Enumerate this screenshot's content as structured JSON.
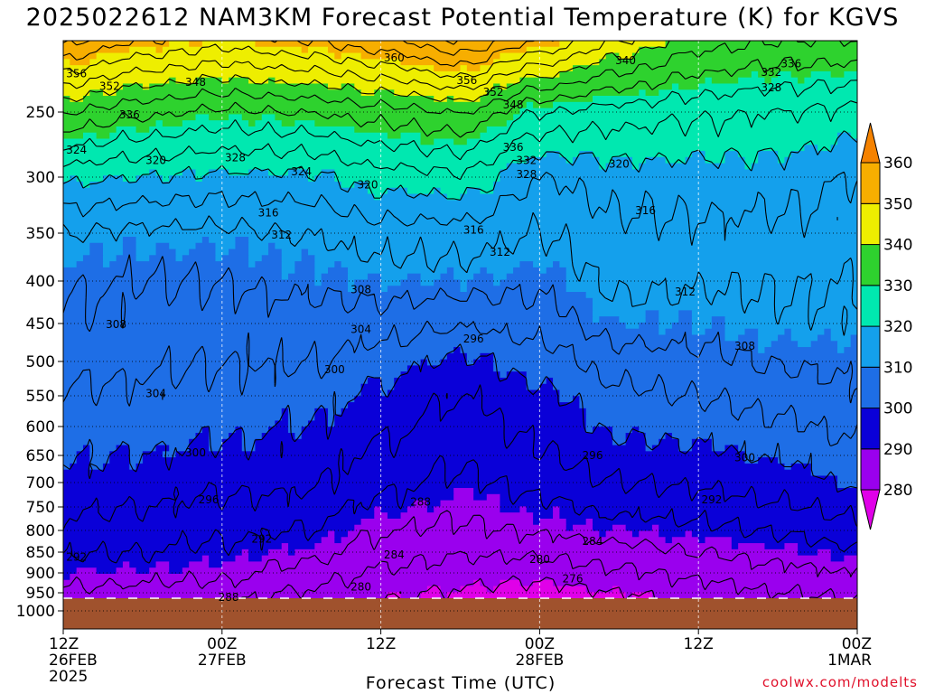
{
  "title": "2025022612 NAM3KM Forecast Potential Temperature (K) for KGVS",
  "credit": "coolwx.com/modelts",
  "chart_data": {
    "type": "heatmap",
    "xlabel": "Forecast Time (UTC)",
    "y_axis": {
      "reversed": true,
      "ticks": [
        250,
        300,
        350,
        400,
        450,
        500,
        550,
        600,
        650,
        700,
        750,
        800,
        850,
        900,
        950,
        1000
      ]
    },
    "x_axis": {
      "range_hours": [
        0,
        60
      ],
      "ticks": [
        {
          "hour": 0,
          "lines": [
            "12Z",
            "26FEB",
            "2025"
          ]
        },
        {
          "hour": 12,
          "lines": [
            "00Z",
            "27FEB"
          ]
        },
        {
          "hour": 24,
          "lines": [
            "12Z"
          ]
        },
        {
          "hour": 36,
          "lines": [
            "00Z",
            "28FEB"
          ]
        },
        {
          "hour": 48,
          "lines": [
            "12Z"
          ]
        },
        {
          "hour": 60,
          "lines": [
            "00Z",
            "1MAR"
          ]
        }
      ]
    },
    "colorbar": {
      "levels": [
        280,
        290,
        300,
        310,
        320,
        330,
        340,
        350,
        360
      ],
      "bands": [
        {
          "range": "<280",
          "color": "#e000e8"
        },
        {
          "range": "280-290",
          "color": "#9a00ee"
        },
        {
          "range": "290-300",
          "color": "#0a00d8"
        },
        {
          "range": "300-310",
          "color": "#1e6ee6"
        },
        {
          "range": "310-320",
          "color": "#14a0ec"
        },
        {
          "range": "320-330",
          "color": "#00e8b0"
        },
        {
          "range": "330-340",
          "color": "#2ed22e"
        },
        {
          "range": "340-350",
          "color": "#eeee00"
        },
        {
          "range": "350-360",
          "color": "#f7ae00"
        },
        {
          "range": ">360",
          "color": "#f58200"
        }
      ]
    },
    "contour_interval": 4,
    "contour_levels": [
      276,
      280,
      284,
      288,
      292,
      296,
      300,
      304,
      308,
      312,
      316,
      320,
      324,
      328,
      332,
      336,
      340,
      344,
      348,
      352,
      356,
      360
    ],
    "terrain_color": "#a0522d",
    "terrain_top_hpa": 965,
    "theta_profiles": {
      "pressure": [
        200,
        250,
        300,
        350,
        400,
        450,
        500,
        550,
        600,
        650,
        700,
        750,
        800,
        850,
        900,
        950,
        1000
      ],
      "columns": [
        {
          "hour": 0,
          "theta": [
            357,
            336,
            321,
            312,
            308.5,
            307.5,
            305.5,
            303.5,
            302,
            300.5,
            299,
            297,
            295,
            292.5,
            290,
            287,
            284
          ]
        },
        {
          "hour": 6,
          "theta": [
            352,
            333,
            320,
            311,
            308,
            306.5,
            305,
            303,
            301.5,
            300,
            298,
            296,
            294,
            292,
            289.5,
            286.5,
            283.5
          ]
        },
        {
          "hour": 12,
          "theta": [
            350,
            331,
            319,
            311,
            308,
            306,
            304,
            302.5,
            301,
            299,
            297,
            295,
            293,
            291,
            289,
            286,
            283
          ]
        },
        {
          "hour": 18,
          "theta": [
            352,
            332,
            319,
            312,
            309,
            306.5,
            304.5,
            302,
            300,
            298.5,
            297,
            294.5,
            292,
            289.5,
            286.5,
            283.5,
            281
          ]
        },
        {
          "hour": 24,
          "theta": [
            355,
            334,
            322,
            314,
            310,
            306,
            302,
            299,
            297,
            295,
            293,
            291,
            288.5,
            286,
            283.5,
            281,
            279
          ]
        },
        {
          "hour": 30,
          "theta": [
            360,
            336,
            323,
            314,
            310,
            304.5,
            299,
            296,
            294,
            292.5,
            291,
            289,
            287,
            284.5,
            282,
            279.5,
            277
          ]
        },
        {
          "hour": 36,
          "theta": [
            352,
            328,
            316,
            312,
            309,
            306,
            302,
            299,
            297,
            295.5,
            293.5,
            291,
            288.5,
            285,
            281.5,
            278,
            275
          ]
        },
        {
          "hour": 42,
          "theta": [
            344,
            326,
            318,
            315,
            313,
            310,
            306,
            303,
            301,
            298.5,
            296,
            293,
            290,
            286.5,
            283,
            280,
            277
          ]
        },
        {
          "hour": 48,
          "theta": [
            338,
            325,
            318,
            315,
            312.5,
            310,
            307,
            304,
            301.5,
            299,
            296.5,
            294,
            291,
            288,
            285,
            282,
            280
          ]
        },
        {
          "hour": 54,
          "theta": [
            336,
            324,
            318,
            315,
            312.5,
            311,
            308.5,
            305.5,
            303,
            300.5,
            298,
            295.5,
            292.5,
            289.5,
            286.5,
            284,
            281
          ]
        },
        {
          "hour": 60,
          "theta": [
            336,
            323,
            316,
            314,
            312,
            311,
            309,
            307,
            305,
            303,
            300.5,
            297.5,
            294.5,
            291,
            288,
            285,
            282
          ]
        }
      ]
    },
    "contour_labels": [
      {
        "text": "360",
        "hour": 25,
        "hpa": 212
      },
      {
        "text": "356",
        "hour": 1,
        "hpa": 223
      },
      {
        "text": "352",
        "hour": 3.5,
        "hpa": 232
      },
      {
        "text": "348",
        "hour": 10,
        "hpa": 229
      },
      {
        "text": "356",
        "hour": 30.5,
        "hpa": 228
      },
      {
        "text": "352",
        "hour": 32.5,
        "hpa": 236
      },
      {
        "text": "348",
        "hour": 34,
        "hpa": 245
      },
      {
        "text": "340",
        "hour": 42.5,
        "hpa": 214
      },
      {
        "text": "336",
        "hour": 55,
        "hpa": 216
      },
      {
        "text": "332",
        "hour": 53.5,
        "hpa": 222
      },
      {
        "text": "328",
        "hour": 53.5,
        "hpa": 233
      },
      {
        "text": "336",
        "hour": 5,
        "hpa": 252
      },
      {
        "text": "324",
        "hour": 1,
        "hpa": 279
      },
      {
        "text": "320",
        "hour": 7,
        "hpa": 287
      },
      {
        "text": "328",
        "hour": 13,
        "hpa": 285
      },
      {
        "text": "324",
        "hour": 18,
        "hpa": 296
      },
      {
        "text": "336",
        "hour": 34,
        "hpa": 277
      },
      {
        "text": "332",
        "hour": 35,
        "hpa": 287
      },
      {
        "text": "328",
        "hour": 35,
        "hpa": 298
      },
      {
        "text": "320",
        "hour": 23,
        "hpa": 307
      },
      {
        "text": "320",
        "hour": 42,
        "hpa": 290
      },
      {
        "text": "316",
        "hour": 15.5,
        "hpa": 332
      },
      {
        "text": "316",
        "hour": 31,
        "hpa": 347
      },
      {
        "text": "316",
        "hour": 44,
        "hpa": 330
      },
      {
        "text": "312",
        "hour": 16.5,
        "hpa": 352
      },
      {
        "text": "312",
        "hour": 33,
        "hpa": 370
      },
      {
        "text": "312",
        "hour": 47,
        "hpa": 413
      },
      {
        "text": "308",
        "hour": 22.5,
        "hpa": 410
      },
      {
        "text": "308",
        "hour": 4,
        "hpa": 451
      },
      {
        "text": "308",
        "hour": 51.5,
        "hpa": 480
      },
      {
        "text": "304",
        "hour": 22.5,
        "hpa": 458
      },
      {
        "text": "304",
        "hour": 7,
        "hpa": 547
      },
      {
        "text": "300",
        "hour": 20.5,
        "hpa": 512
      },
      {
        "text": "300",
        "hour": 10,
        "hpa": 645
      },
      {
        "text": "300",
        "hour": 51.5,
        "hpa": 654
      },
      {
        "text": "296",
        "hour": 31,
        "hpa": 470
      },
      {
        "text": "296",
        "hour": 11,
        "hpa": 735
      },
      {
        "text": "296",
        "hour": 40,
        "hpa": 650
      },
      {
        "text": "292",
        "hour": 49,
        "hpa": 735
      },
      {
        "text": "292",
        "hour": 15,
        "hpa": 820
      },
      {
        "text": "292",
        "hour": 1,
        "hpa": 862
      },
      {
        "text": "288",
        "hour": 27,
        "hpa": 740
      },
      {
        "text": "288",
        "hour": 12.5,
        "hpa": 962
      },
      {
        "text": "284",
        "hour": 25,
        "hpa": 856
      },
      {
        "text": "284",
        "hour": 40,
        "hpa": 825
      },
      {
        "text": "280",
        "hour": 36,
        "hpa": 867
      },
      {
        "text": "280",
        "hour": 22.5,
        "hpa": 935
      },
      {
        "text": "276",
        "hour": 38.5,
        "hpa": 915
      }
    ]
  }
}
